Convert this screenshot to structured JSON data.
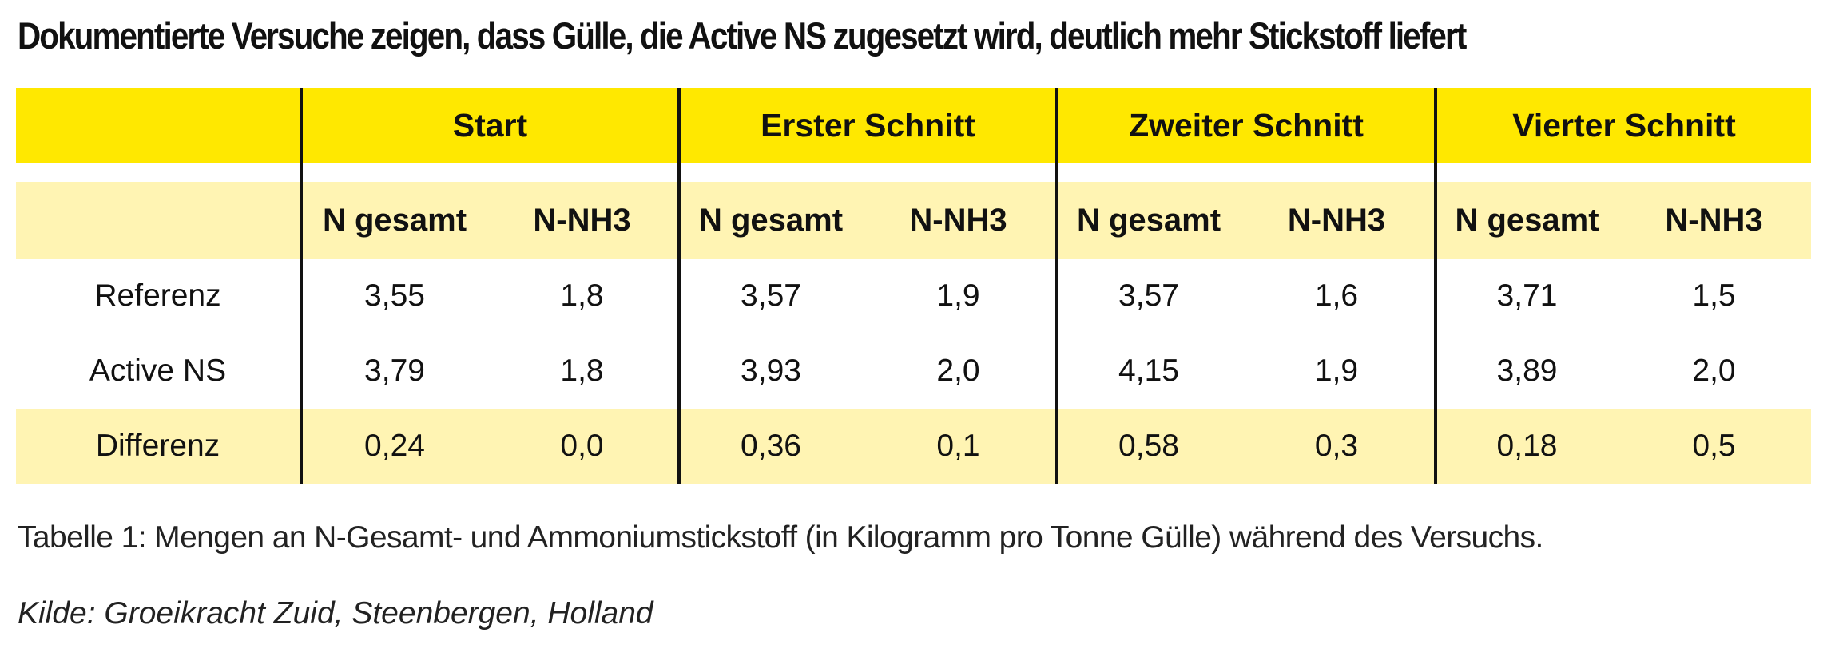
{
  "title": "Dokumentierte Versuche zeigen, dass Gülle, die Active NS zugesetzt wird, deutlich mehr Stickstoff liefert",
  "table": {
    "groups": [
      "Start",
      "Erster Schnitt",
      "Zweiter Schnitt",
      "Vierter Schnitt"
    ],
    "subheaders": [
      "N gesamt",
      "N-NH3"
    ],
    "rows": [
      {
        "label": "Referenz",
        "values": [
          "3,55",
          "1,8",
          "3,57",
          "1,9",
          "3,57",
          "1,6",
          "3,71",
          "1,5"
        ]
      },
      {
        "label": "Active NS",
        "values": [
          "3,79",
          "1,8",
          "3,93",
          "2,0",
          "4,15",
          "1,9",
          "3,89",
          "2,0"
        ]
      },
      {
        "label": "Differenz",
        "values": [
          "0,24",
          "0,0",
          "0,36",
          "0,1",
          "0,58",
          "0,3",
          "0,18",
          "0,5"
        ]
      }
    ],
    "colors": {
      "header_band": "#ffe800",
      "light_band": "#fff4b3",
      "divider": "#111111"
    }
  },
  "caption": "Tabelle 1: Mengen an N-Gesamt- und Ammoniumstickstoff (in Kilogramm pro Tonne Gülle) während des Versuchs.",
  "source": "Kilde: Groeikracht Zuid, Steenbergen, Holland"
}
